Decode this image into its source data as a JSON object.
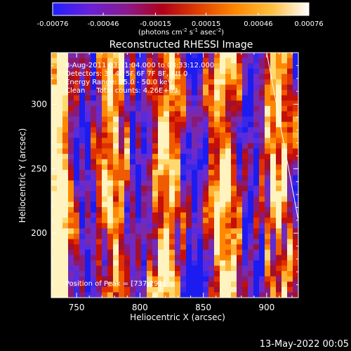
{
  "colorbar": {
    "tick_labels": [
      "-0.00076",
      "-0.00046",
      "-0.00015",
      "0.00015",
      "0.00046",
      "0.00076"
    ],
    "tick_values": [
      -0.00076,
      -0.00046,
      -0.00015,
      0.00015,
      0.00046,
      0.00076
    ],
    "range": [
      -0.00076,
      0.00076
    ],
    "unit_prefix": "(photons cm",
    "unit_exp1": "-2",
    "unit_mid1": " s",
    "unit_exp2": "-1",
    "unit_mid2": " asec",
    "unit_exp3": "-2",
    "unit_suffix": ")",
    "colors": [
      "#2020ff",
      "#6a20d8",
      "#8a1a90",
      "#b00018",
      "#e04000",
      "#ff8800",
      "#ffc040",
      "#ffffff"
    ]
  },
  "chart_data": {
    "type": "heatmap",
    "title": "Reconstructed RHESSI Image",
    "xlabel": "Heliocentric X (arcsec)",
    "ylabel": "Heliocentric Y (arcsec)",
    "xlim": [
      730,
      925
    ],
    "ylim": [
      150,
      340
    ],
    "xticks": [
      750,
      800,
      850,
      900
    ],
    "yticks": [
      200,
      250,
      300
    ],
    "x_tick_labels": [
      "750",
      "800",
      "850",
      "900"
    ],
    "y_tick_labels": [
      "200",
      "250",
      "300"
    ],
    "peak_position": [
      737,
      291
    ],
    "annotations": {
      "time": "8-Aug-2011 03:31:04.000 to 03:33:12.000",
      "detectors": "Detectors: 3F 4F 5F 6F 7F 8F, Att 0",
      "energy": "Energy Range: 25.0 - 50.0 keV",
      "clean": "Clean     Total counts: 4.26E+03",
      "peak": "Position of Peak = [737,291]"
    },
    "limb_line": [
      [
        900,
        340
      ],
      [
        925,
        210
      ]
    ]
  },
  "footer": {
    "date": "13-May-2022 00:05"
  }
}
